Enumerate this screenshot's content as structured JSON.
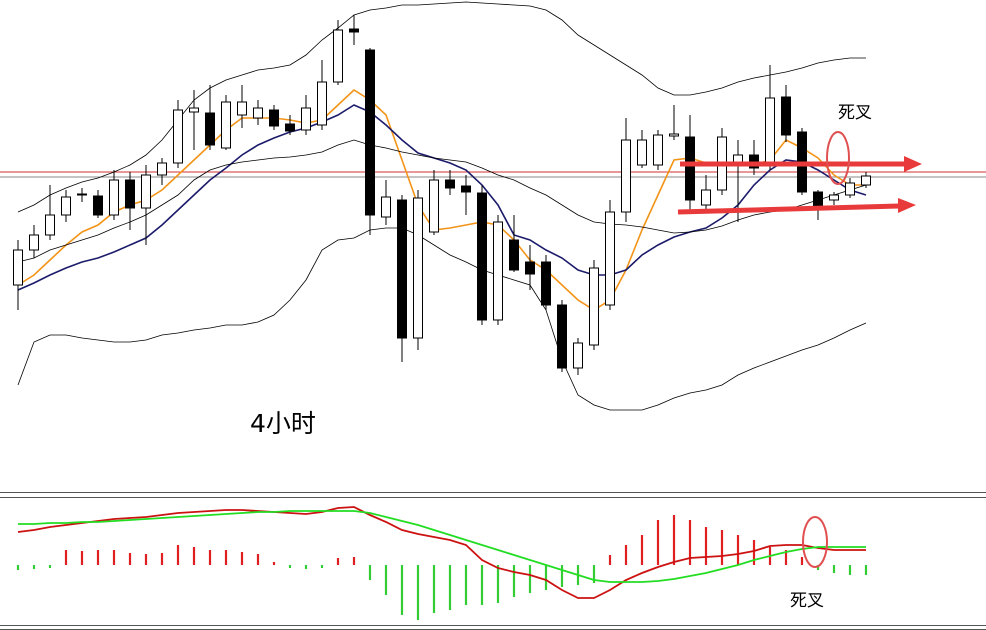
{
  "chart_data": [
    {
      "type": "candlestick",
      "ylim": [
        0,
        490
      ],
      "up_color": "#ffffff",
      "down_color": "#000000",
      "open": [
        205,
        240,
        255,
        275,
        295,
        294,
        275,
        310,
        282,
        315,
        327,
        378,
        377,
        342,
        375,
        372,
        380,
        366,
        360,
        365,
        408,
        461,
        440,
        273,
        290,
        152,
        258,
        310,
        304,
        297,
        170,
        250,
        228,
        228,
        185,
        122,
        145,
        185,
        278,
        325,
        325,
        354,
        353,
        285,
        300,
        327,
        335,
        327,
        393,
        358,
        298,
        290,
        295,
        305
      ],
      "high": [
        250,
        265,
        305,
        300,
        302,
        300,
        320,
        318,
        325,
        332,
        390,
        400,
        405,
        395,
        405,
        390,
        385,
        375,
        395,
        430,
        470,
        475,
        442,
        310,
        295,
        300,
        320,
        320,
        315,
        305,
        275,
        275,
        245,
        235,
        190,
        152,
        230,
        290,
        372,
        360,
        360,
        385,
        375,
        315,
        362,
        350,
        350,
        425,
        405,
        362,
        300,
        298,
        312,
        318
      ],
      "low": [
        180,
        232,
        250,
        268,
        288,
        272,
        270,
        260,
        245,
        305,
        322,
        340,
        340,
        340,
        362,
        365,
        360,
        355,
        355,
        360,
        405,
        445,
        255,
        265,
        128,
        140,
        255,
        295,
        275,
        165,
        165,
        218,
        200,
        180,
        118,
        115,
        140,
        180,
        268,
        322,
        320,
        350,
        280,
        278,
        295,
        268,
        315,
        320,
        348,
        295,
        270,
        285,
        292,
        302
      ],
      "close": [
        240,
        255,
        275,
        293,
        296,
        275,
        310,
        282,
        315,
        327,
        380,
        382,
        345,
        388,
        388,
        382,
        364,
        359,
        382,
        408,
        460,
        458,
        275,
        293,
        152,
        292,
        310,
        302,
        298,
        170,
        268,
        220,
        216,
        185,
        122,
        147,
        222,
        278,
        350,
        350,
        355,
        356,
        290,
        300,
        353,
        335,
        322,
        392,
        355,
        298,
        283,
        295,
        307,
        314
      ],
      "lines": [
        {
          "color": "#f39418",
          "values": [
            205,
            215,
            230,
            245,
            258,
            265,
            278,
            285,
            290,
            300,
            315,
            330,
            345,
            360,
            372,
            372,
            372,
            370,
            367,
            370,
            385,
            400,
            390,
            375,
            330,
            285,
            260,
            262,
            265,
            268,
            265,
            250,
            230,
            220,
            205,
            190,
            180,
            190,
            220,
            260,
            295,
            330,
            332,
            327,
            325,
            325,
            325,
            330,
            350,
            342,
            332,
            315,
            305,
            305
          ]
        },
        {
          "color": "#1b1b6b",
          "values": [
            200,
            207,
            215,
            222,
            228,
            232,
            238,
            245,
            252,
            265,
            280,
            295,
            310,
            322,
            335,
            345,
            352,
            358,
            362,
            368,
            375,
            385,
            378,
            365,
            350,
            337,
            332,
            327,
            320,
            305,
            285,
            255,
            250,
            240,
            232,
            220,
            215,
            215,
            220,
            235,
            245,
            253,
            258,
            262,
            272,
            285,
            305,
            320,
            330,
            328,
            320,
            310,
            300,
            295
          ]
        },
        {
          "color": "#000000",
          "values": [
            278,
            285,
            295,
            302,
            308,
            312,
            318,
            325,
            335,
            350,
            370,
            390,
            402,
            410,
            415,
            420,
            422,
            425,
            435,
            450,
            462,
            475,
            480,
            482,
            485,
            485,
            486,
            487,
            488,
            487,
            486,
            485,
            484,
            480,
            470,
            455,
            445,
            435,
            425,
            415,
            402,
            395,
            395,
            398,
            402,
            408,
            412,
            415,
            418,
            422,
            427,
            430,
            432,
            432
          ]
        },
        {
          "color": "#000000",
          "values": [
            228,
            232,
            240,
            245,
            250,
            255,
            262,
            268,
            275,
            285,
            295,
            310,
            320,
            325,
            328,
            330,
            332,
            333,
            335,
            338,
            345,
            350,
            345,
            342,
            338,
            335,
            332,
            330,
            328,
            322,
            315,
            310,
            302,
            295,
            285,
            275,
            268,
            266,
            265,
            263,
            260,
            257,
            258,
            260,
            264,
            270,
            275,
            278,
            280,
            285,
            290,
            295,
            300,
            305
          ]
        },
        {
          "color": "#000000",
          "values": [
            105,
            148,
            155,
            155,
            152,
            150,
            148,
            148,
            150,
            155,
            157,
            160,
            162,
            165,
            165,
            168,
            175,
            190,
            210,
            240,
            250,
            252,
            260,
            262,
            262,
            255,
            245,
            235,
            228,
            220,
            215,
            210,
            205,
            180,
            130,
            95,
            85,
            80,
            80,
            80,
            85,
            92,
            97,
            100,
            105,
            115,
            122,
            128,
            134,
            140,
            145,
            152,
            160,
            167
          ]
        }
      ],
      "levels": [
        {
          "value": 318,
          "color": "#d03030"
        },
        {
          "value": 313,
          "color": "#8a8a8a"
        }
      ],
      "annotations": [
        "4小时",
        "死叉"
      ]
    },
    {
      "type": "macd",
      "ylim": [
        -63,
        68
      ],
      "up_color": "#e02020",
      "down_color": "#33cc33",
      "histogram": [
        -5,
        -4,
        -3,
        15,
        14,
        15,
        15,
        12,
        11,
        12,
        20,
        18,
        15,
        15,
        13,
        11,
        3,
        -3,
        -4,
        -3,
        7,
        8,
        -15,
        -30,
        -50,
        -55,
        -48,
        -45,
        -40,
        -40,
        -38,
        -32,
        -28,
        -25,
        -22,
        -20,
        -18,
        10,
        20,
        30,
        45,
        50,
        45,
        38,
        35,
        30,
        25,
        18,
        15,
        8,
        -5,
        -8,
        -10,
        -10
      ],
      "series": [
        {
          "color": "#cc1111",
          "values": [
            33,
            35,
            38,
            40,
            42,
            44,
            46,
            47,
            48,
            50,
            52,
            53,
            54,
            55,
            55,
            54,
            53,
            52,
            51,
            53,
            57,
            58,
            50,
            43,
            35,
            31,
            28,
            25,
            20,
            5,
            -3,
            -7,
            -10,
            -15,
            -25,
            -33,
            -33,
            -25,
            -15,
            -8,
            -2,
            3,
            7,
            8,
            9,
            11,
            14,
            19,
            20,
            20,
            17,
            15,
            15,
            15
          ]
        },
        {
          "color": "#22dd22",
          "values": [
            41,
            41,
            42,
            42,
            43,
            43,
            44,
            45,
            46,
            47,
            48,
            49,
            50,
            51,
            52,
            53,
            53,
            54,
            54,
            54,
            54,
            54,
            52,
            48,
            44,
            40,
            35,
            30,
            25,
            20,
            15,
            10,
            5,
            0,
            -5,
            -10,
            -15,
            -17,
            -17,
            -17,
            -16,
            -14,
            -11,
            -8,
            -4,
            0,
            5,
            9,
            13,
            16,
            18,
            18,
            18,
            18
          ]
        }
      ],
      "annotations": [
        "死叉"
      ]
    }
  ]
}
